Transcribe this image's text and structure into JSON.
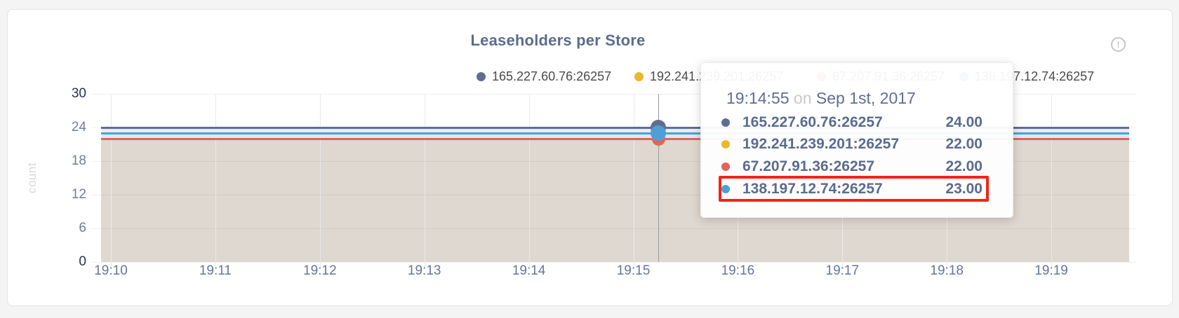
{
  "header": {
    "title": "Leaseholders per Store",
    "info_icon": "!"
  },
  "chart_data": {
    "type": "area",
    "title": "Leaseholders per Store",
    "xlabel": "",
    "ylabel": "count",
    "ylim": [
      0,
      30
    ],
    "y_ticks": [
      "30",
      "24",
      "18",
      "12",
      "6",
      "0"
    ],
    "x_ticks": [
      "19:10",
      "19:11",
      "19:12",
      "19:13",
      "19:14",
      "19:15",
      "19:16",
      "19:17",
      "19:18",
      "19:19"
    ],
    "grid": true,
    "legend_position": "top",
    "series": [
      {
        "name": "165.227.60.76:26257",
        "color": "#5f6e90",
        "values": [
          24,
          24,
          24,
          24,
          24,
          24,
          24,
          24,
          24,
          24
        ]
      },
      {
        "name": "192.241.239.201:26257",
        "color": "#eab72f",
        "values": [
          22,
          22,
          22,
          22,
          22,
          22,
          22,
          22,
          22,
          22
        ]
      },
      {
        "name": "67.207.91.36:26257",
        "color": "#e2635c",
        "values": [
          22,
          22,
          22,
          22,
          22,
          22,
          22,
          22,
          22,
          22
        ]
      },
      {
        "name": "138.197.12.74:26257",
        "color": "#4d9fd6",
        "values": [
          23,
          23,
          23,
          23,
          23,
          23,
          23,
          23,
          23,
          23
        ]
      }
    ],
    "hover_point": {
      "time": "19:14:55",
      "date": "Sep 1st, 2017",
      "values": [
        24,
        22,
        22,
        23
      ]
    }
  },
  "tooltip": {
    "time": "19:14:55",
    "conjunction": "on",
    "date": "Sep 1st, 2017",
    "rows": [
      {
        "name": "165.227.60.76:26257",
        "value": "24.00",
        "color": "#5f6e90",
        "highlighted": false
      },
      {
        "name": "192.241.239.201:26257",
        "value": "22.00",
        "color": "#eab72f",
        "highlighted": false
      },
      {
        "name": "67.207.91.36:26257",
        "value": "22.00",
        "color": "#e2635c",
        "highlighted": false
      },
      {
        "name": "138.197.12.74:26257",
        "value": "23.00",
        "color": "#4d9fd6",
        "highlighted": true
      }
    ]
  },
  "colors": {
    "title": "#5b6c8f",
    "fill_tan": "#ded8d0",
    "fill_band_upper": "#e9ecf1",
    "fill_band_lower": "#dce9f3",
    "annotation_red": "#f0251a",
    "hover_guide": "#9b9b9b"
  }
}
